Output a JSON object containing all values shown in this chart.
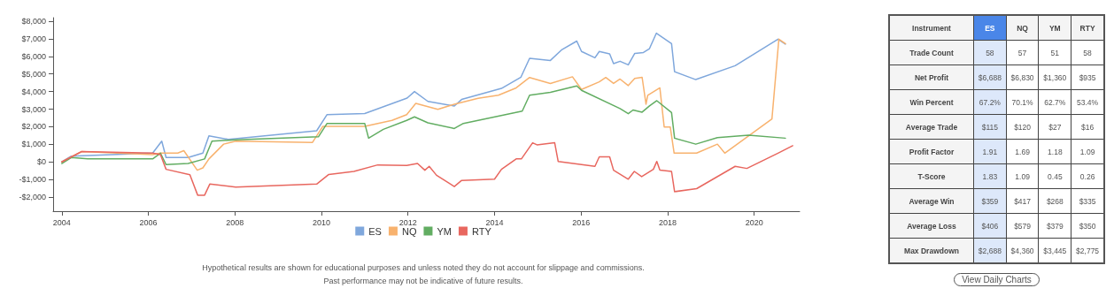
{
  "chart_data": [
    {
      "type": "line",
      "xlim": [
        2003.8,
        2021.05
      ],
      "xticks": [
        2004,
        2006,
        2008,
        2010,
        2012,
        2014,
        2016,
        2018,
        2020
      ],
      "ylim": [
        -2800,
        8200
      ],
      "yticks": [
        {
          "value": -2000,
          "label": "-$2,000"
        },
        {
          "value": -1000,
          "label": "-$1,000"
        },
        {
          "value": 0,
          "label": "$0"
        },
        {
          "value": 1000,
          "label": "$1,000"
        },
        {
          "value": 2000,
          "label": "$2,000"
        },
        {
          "value": 3000,
          "label": "$3,000"
        },
        {
          "value": 4000,
          "label": "$4,000"
        },
        {
          "value": 5000,
          "label": "$5,000"
        },
        {
          "value": 6000,
          "label": "$6,000"
        },
        {
          "value": 7000,
          "label": "$7,000"
        },
        {
          "value": 8000,
          "label": "$8,000"
        }
      ],
      "grid": false,
      "legend": "bottom",
      "marker": "none",
      "line_style": "solid",
      "annotations": [
        "Hypothetical results are shown for educational purposes and unless noted they do not account for slippage and commissions.",
        "Past performance may not be indicative of future results."
      ],
      "series": [
        {
          "name": "ES",
          "color": "#7fa7dc",
          "x": [
            2004,
            2004.22,
            2006.1,
            2006.31,
            2006.41,
            2006.92,
            2007.26,
            2007.4,
            2007.85,
            2009.89,
            2010.13,
            2011,
            2011.98,
            2012.15,
            2012.46,
            2013.07,
            2013.24,
            2014.16,
            2014.61,
            2014.81,
            2015.29,
            2015.56,
            2015.9,
            2016.01,
            2016.32,
            2016.42,
            2016.66,
            2016.75,
            2016.9,
            2017.09,
            2017.24,
            2017.44,
            2017.58,
            2017.74,
            2018.09,
            2018.16,
            2018.65,
            2019.56,
            2020.55,
            2020.72
          ],
          "values": [
            0,
            330,
            500,
            1180,
            250,
            250,
            500,
            1480,
            1280,
            1770,
            2690,
            2750,
            3630,
            4000,
            3440,
            3180,
            3550,
            4180,
            4820,
            5890,
            5770,
            6390,
            6870,
            6280,
            5920,
            6280,
            6140,
            5590,
            5720,
            5520,
            6170,
            6220,
            6440,
            7320,
            6730,
            5130,
            4680,
            5470,
            6980,
            6700
          ]
        },
        {
          "name": "NQ",
          "color": "#f8b26e",
          "x": [
            2004,
            2004.46,
            2006.1,
            2006.28,
            2006.68,
            2006.82,
            2007.13,
            2007.26,
            2007.4,
            2007.74,
            2008.02,
            2009.79,
            2010.03,
            2011,
            2011.63,
            2011.97,
            2012.18,
            2012.69,
            2013.07,
            2013.62,
            2014.09,
            2014.5,
            2014.81,
            2015.29,
            2015.8,
            2016.01,
            2016.42,
            2016.57,
            2016.75,
            2016.9,
            2017.09,
            2017.24,
            2017.41,
            2017.5,
            2017.54,
            2017.82,
            2017.92,
            2018.06,
            2018.15,
            2018.67,
            2019.15,
            2019.32,
            2020.41,
            2020.57,
            2020.72
          ],
          "values": [
            0,
            590,
            420,
            500,
            500,
            640,
            -470,
            -340,
            170,
            1010,
            1180,
            1100,
            2020,
            2020,
            2360,
            2690,
            3330,
            2990,
            3280,
            3620,
            3790,
            4210,
            4800,
            4460,
            4840,
            4120,
            4550,
            4800,
            4460,
            4710,
            4340,
            4750,
            4810,
            3280,
            3790,
            4210,
            1990,
            1990,
            500,
            500,
            1010,
            500,
            2440,
            6980,
            6720
          ]
        },
        {
          "name": "YM",
          "color": "#62ad62",
          "x": [
            2004,
            2004.22,
            2004.6,
            2006.1,
            2006.28,
            2006.41,
            2006.92,
            2007.3,
            2007.47,
            2008.02,
            2009.93,
            2010.13,
            2011,
            2011.09,
            2011.43,
            2011.97,
            2012.15,
            2012.46,
            2013.07,
            2013.28,
            2014.64,
            2014.81,
            2015.29,
            2015.9,
            2016.01,
            2016.9,
            2017.09,
            2017.2,
            2017.41,
            2017.58,
            2017.75,
            2018.09,
            2018.16,
            2018.65,
            2019.15,
            2019.87,
            2020.72
          ],
          "values": [
            -90,
            250,
            170,
            170,
            500,
            -150,
            -90,
            170,
            1180,
            1260,
            1430,
            2190,
            2190,
            1350,
            1850,
            2360,
            2560,
            2220,
            1900,
            2190,
            2890,
            3790,
            3960,
            4320,
            4070,
            3030,
            2740,
            2950,
            2830,
            3180,
            3480,
            2810,
            1350,
            1010,
            1380,
            1520,
            1350
          ]
        },
        {
          "name": "RTY",
          "color": "#e8675f",
          "x": [
            2004,
            2004.46,
            2006.1,
            2006.28,
            2006.41,
            2006.96,
            2007.14,
            2007.3,
            2007.42,
            2008.02,
            2009.89,
            2010.17,
            2010.75,
            2011.3,
            2011.97,
            2012.22,
            2012.39,
            2012.49,
            2012.66,
            2013.07,
            2013.24,
            2014,
            2014.16,
            2014.5,
            2014.62,
            2014.88,
            2014.98,
            2015.39,
            2015.47,
            2016.32,
            2016.42,
            2016.66,
            2016.75,
            2017.09,
            2017.23,
            2017.4,
            2017.67,
            2017.75,
            2017.82,
            2018.09,
            2018.16,
            2018.67,
            2019.56,
            2019.83,
            2020.55,
            2020.89
          ],
          "values": [
            0,
            590,
            500,
            420,
            -420,
            -730,
            -1890,
            -1890,
            -1260,
            -1430,
            -1260,
            -710,
            -540,
            -170,
            -200,
            -90,
            -470,
            -250,
            -760,
            -1400,
            -1050,
            -980,
            -420,
            170,
            170,
            1090,
            970,
            1090,
            30,
            -250,
            290,
            290,
            -470,
            -980,
            -540,
            -840,
            -420,
            30,
            -470,
            -540,
            -1690,
            -1520,
            -250,
            -370,
            500,
            920
          ]
        }
      ]
    },
    {
      "type": "other",
      "ylabel": "Instrument",
      "categories": [
        "ES",
        "NQ",
        "YM",
        "RTY"
      ],
      "y_categories": [
        "Trade Count",
        "Net Profit",
        "Win Percent",
        "Average Trade",
        "Profit Factor",
        "T-Score",
        "Average Win",
        "Average Loss",
        "Max Drawdown"
      ],
      "cell_labels": [
        [
          "58",
          "57",
          "51",
          "58"
        ],
        [
          "$6,688",
          "$6,830",
          "$1,360",
          "$935"
        ],
        [
          "67.2%",
          "70.1%",
          "62.7%",
          "53.4%"
        ],
        [
          "$115",
          "$120",
          "$27",
          "$16"
        ],
        [
          "1.91",
          "1.69",
          "1.18",
          "1.09"
        ],
        [
          "1.83",
          "1.09",
          "0.45",
          "0.26"
        ],
        [
          "$359",
          "$417",
          "$268",
          "$335"
        ],
        [
          "$406",
          "$579",
          "$379",
          "$350"
        ],
        [
          "$2,688",
          "$4,360",
          "$3,445",
          "$2,775"
        ]
      ],
      "annotations": [
        "View Daily Charts"
      ]
    }
  ]
}
